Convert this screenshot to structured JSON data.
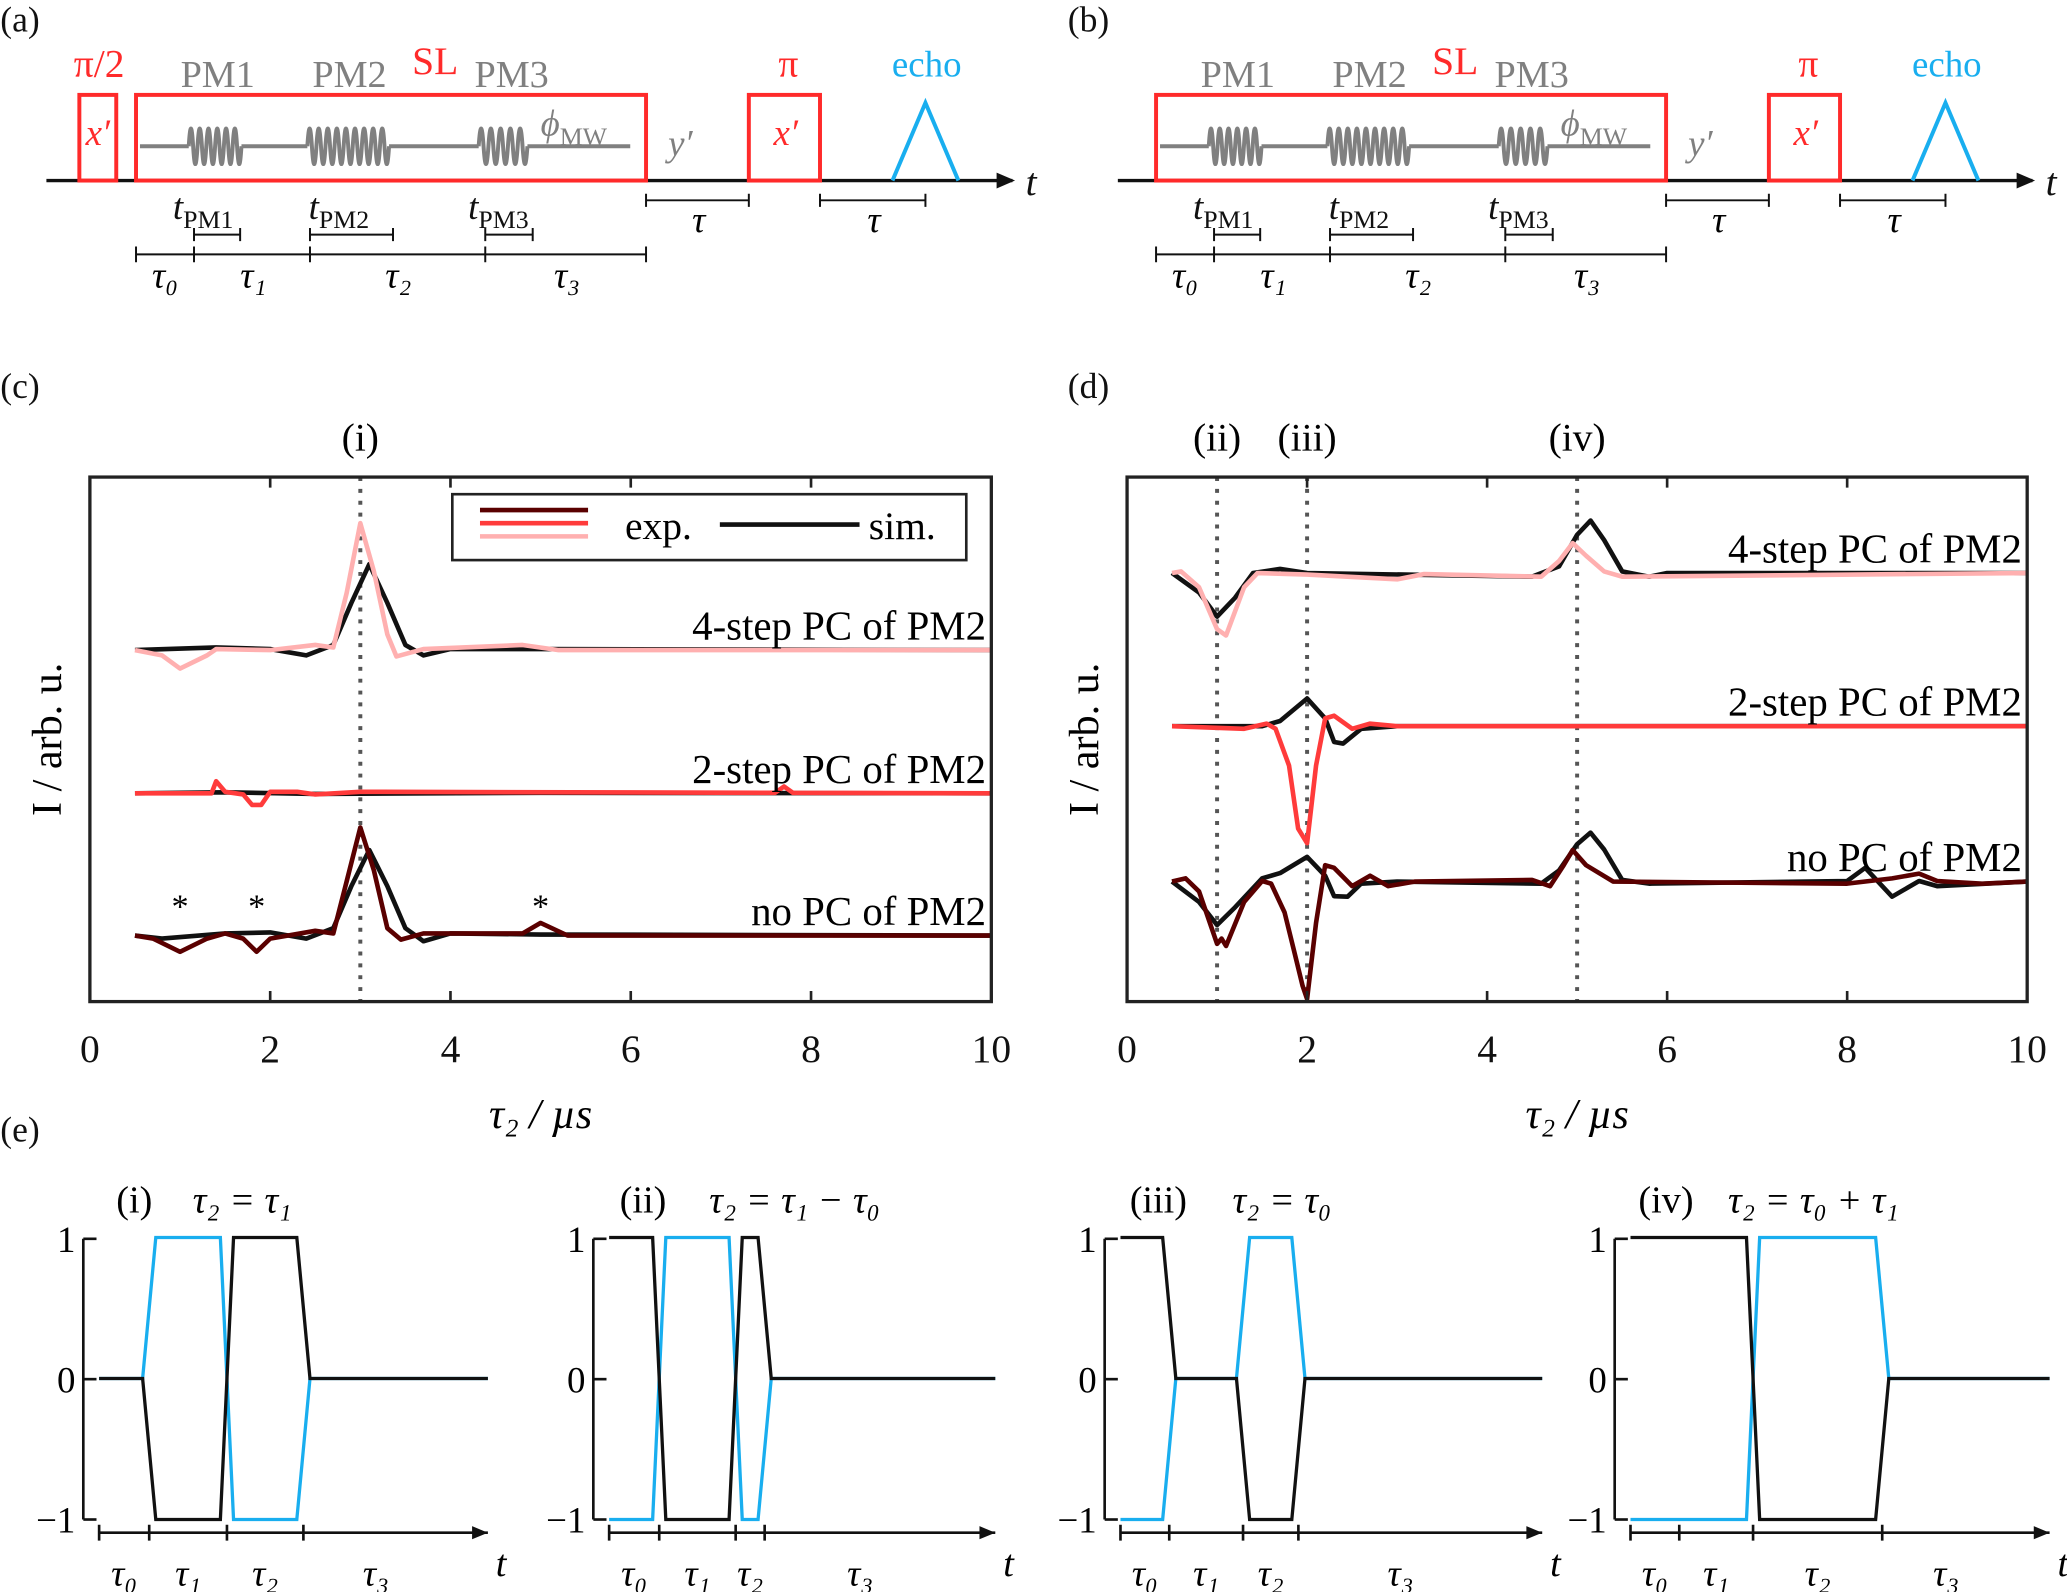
{
  "panel_labels": {
    "a": "(a)",
    "b": "(b)",
    "c": "(c)",
    "d": "(d)",
    "e": "(e)"
  },
  "sequence": {
    "pi_half": "π/2",
    "pi": "π",
    "x_prime": "x′",
    "y_prime": "y′",
    "sl": "SL",
    "echo": "echo",
    "pm1": "PM1",
    "pm2": "PM2",
    "pm3": "PM3",
    "phi": "ϕ",
    "phi_sub": "MW",
    "t_axis": "t",
    "t_sym": "t",
    "tpm1_sub": "PM1",
    "tpm2_sub": "PM2",
    "tpm3_sub": "PM3",
    "tau": "τ",
    "tau0": "τ₀",
    "tau1": "τ₁",
    "tau2": "τ₂",
    "tau3": "τ₃",
    "colors": {
      "pulse": "#ff2a2a",
      "pm": "#808080",
      "echo": "#19aeef",
      "axis": "#111111"
    }
  },
  "chart_data": [
    {
      "id": "c",
      "type": "line",
      "xlabel": "τ₂ / µs",
      "ylabel": "I / arb. u.",
      "xlim": [
        0,
        10
      ],
      "ylim": [
        0,
        10
      ],
      "xticks": [
        0,
        2,
        4,
        6,
        8,
        10
      ],
      "legend": {
        "placement": "top-right",
        "exp": "exp.",
        "sim": "sim.",
        "exp_colors": [
          "#5a0000",
          "#ff3b3b",
          "#ffb0b0"
        ]
      },
      "markers": [
        {
          "x": 3,
          "label": "(i)"
        }
      ],
      "asterisks": {
        "symbol": "*",
        "x": [
          1.0,
          1.85,
          5.0
        ],
        "y": 1.8
      },
      "groups": [
        {
          "label": "4-step PC of PM2",
          "color": "#ffb0b0",
          "sim": [
            [
              0.5,
              6.7
            ],
            [
              1.4,
              6.75
            ],
            [
              2.0,
              6.72
            ],
            [
              2.4,
              6.6
            ],
            [
              2.7,
              6.8
            ],
            [
              2.9,
              7.6
            ],
            [
              3.1,
              8.34
            ],
            [
              3.3,
              7.6
            ],
            [
              3.5,
              6.8
            ],
            [
              3.7,
              6.6
            ],
            [
              4.0,
              6.72
            ],
            [
              5.0,
              6.72
            ],
            [
              10,
              6.7
            ]
          ],
          "exp": [
            [
              0.5,
              6.7
            ],
            [
              0.8,
              6.6
            ],
            [
              1.0,
              6.35
            ],
            [
              1.3,
              6.6
            ],
            [
              1.4,
              6.72
            ],
            [
              2.0,
              6.7
            ],
            [
              2.5,
              6.8
            ],
            [
              2.7,
              6.75
            ],
            [
              2.85,
              7.8
            ],
            [
              3.0,
              9.12
            ],
            [
              3.15,
              8.2
            ],
            [
              3.3,
              7.0
            ],
            [
              3.4,
              6.58
            ],
            [
              3.7,
              6.72
            ],
            [
              4.8,
              6.8
            ],
            [
              5.2,
              6.7
            ],
            [
              10,
              6.7
            ]
          ]
        },
        {
          "label": "2-step PC of PM2",
          "color": "#ff3b3b",
          "sim": [
            [
              0.5,
              3.97
            ],
            [
              1.5,
              3.99
            ],
            [
              2.5,
              3.96
            ],
            [
              5,
              3.98
            ],
            [
              10,
              3.97
            ]
          ],
          "exp": [
            [
              0.5,
              3.97
            ],
            [
              1.35,
              3.97
            ],
            [
              1.4,
              4.2
            ],
            [
              1.5,
              4.0
            ],
            [
              1.7,
              3.95
            ],
            [
              1.8,
              3.75
            ],
            [
              1.9,
              3.75
            ],
            [
              2.0,
              4.0
            ],
            [
              2.3,
              4.0
            ],
            [
              2.5,
              3.95
            ],
            [
              3.0,
              4.0
            ],
            [
              7.6,
              3.98
            ],
            [
              7.7,
              4.1
            ],
            [
              7.8,
              3.98
            ],
            [
              10,
              3.97
            ]
          ]
        },
        {
          "label": "no PC of PM2",
          "color": "#5a0000",
          "sim": [
            [
              0.5,
              1.26
            ],
            [
              0.8,
              1.2
            ],
            [
              1.5,
              1.3
            ],
            [
              2.0,
              1.32
            ],
            [
              2.4,
              1.2
            ],
            [
              2.7,
              1.4
            ],
            [
              2.9,
              2.2
            ],
            [
              3.1,
              2.89
            ],
            [
              3.3,
              2.2
            ],
            [
              3.5,
              1.4
            ],
            [
              3.7,
              1.15
            ],
            [
              4.0,
              1.3
            ],
            [
              5,
              1.28
            ],
            [
              10,
              1.26
            ]
          ],
          "exp": [
            [
              0.5,
              1.26
            ],
            [
              0.7,
              1.2
            ],
            [
              1.0,
              0.95
            ],
            [
              1.3,
              1.2
            ],
            [
              1.5,
              1.3
            ],
            [
              1.7,
              1.2
            ],
            [
              1.85,
              0.95
            ],
            [
              2.0,
              1.2
            ],
            [
              2.5,
              1.35
            ],
            [
              2.7,
              1.3
            ],
            [
              2.85,
              2.3
            ],
            [
              3.0,
              3.32
            ],
            [
              3.15,
              2.5
            ],
            [
              3.3,
              1.4
            ],
            [
              3.45,
              1.18
            ],
            [
              3.7,
              1.3
            ],
            [
              4.8,
              1.3
            ],
            [
              5.0,
              1.5
            ],
            [
              5.3,
              1.26
            ],
            [
              10,
              1.26
            ]
          ]
        }
      ]
    },
    {
      "id": "d",
      "type": "line",
      "xlabel": "τ₂ / µs",
      "ylabel": "I / arb. u.",
      "xlim": [
        0,
        10
      ],
      "ylim": [
        0,
        10
      ],
      "xticks": [
        0,
        2,
        4,
        6,
        8,
        10
      ],
      "markers": [
        {
          "x": 1,
          "label": "(ii)"
        },
        {
          "x": 2,
          "label": "(iii)"
        },
        {
          "x": 5,
          "label": "(iv)"
        }
      ],
      "groups": [
        {
          "label": "4-step PC of PM2",
          "color": "#ffb0b0",
          "sim": [
            [
              0.5,
              8.17
            ],
            [
              0.8,
              7.8
            ],
            [
              1.0,
              7.34
            ],
            [
              1.2,
              7.7
            ],
            [
              1.4,
              8.17
            ],
            [
              1.7,
              8.25
            ],
            [
              2.0,
              8.17
            ],
            [
              4.5,
              8.1
            ],
            [
              4.8,
              8.3
            ],
            [
              5.0,
              8.9
            ],
            [
              5.15,
              9.17
            ],
            [
              5.3,
              8.8
            ],
            [
              5.5,
              8.2
            ],
            [
              5.8,
              8.1
            ],
            [
              6.0,
              8.17
            ],
            [
              10,
              8.17
            ]
          ],
          "exp": [
            [
              0.5,
              8.17
            ],
            [
              0.6,
              8.2
            ],
            [
              0.8,
              7.9
            ],
            [
              1.0,
              7.1
            ],
            [
              1.1,
              6.98
            ],
            [
              1.3,
              7.9
            ],
            [
              1.45,
              8.17
            ],
            [
              2.0,
              8.14
            ],
            [
              3.0,
              8.05
            ],
            [
              3.3,
              8.15
            ],
            [
              4.6,
              8.1
            ],
            [
              4.8,
              8.4
            ],
            [
              4.95,
              8.74
            ],
            [
              5.1,
              8.5
            ],
            [
              5.3,
              8.2
            ],
            [
              5.5,
              8.1
            ],
            [
              10,
              8.17
            ]
          ]
        },
        {
          "label": "2-step PC of PM2",
          "color": "#ff3b3b",
          "sim": [
            [
              0.5,
              5.25
            ],
            [
              1.5,
              5.25
            ],
            [
              1.7,
              5.35
            ],
            [
              2.0,
              5.78
            ],
            [
              2.2,
              5.4
            ],
            [
              2.3,
              4.95
            ],
            [
              2.4,
              4.92
            ],
            [
              2.6,
              5.2
            ],
            [
              3,
              5.25
            ],
            [
              10,
              5.25
            ]
          ],
          "exp": [
            [
              0.5,
              5.25
            ],
            [
              1.3,
              5.2
            ],
            [
              1.55,
              5.3
            ],
            [
              1.65,
              5.2
            ],
            [
              1.8,
              4.5
            ],
            [
              1.9,
              3.3
            ],
            [
              2.0,
              3.02
            ],
            [
              2.1,
              4.5
            ],
            [
              2.2,
              5.4
            ],
            [
              2.3,
              5.45
            ],
            [
              2.5,
              5.2
            ],
            [
              2.7,
              5.3
            ],
            [
              3,
              5.25
            ],
            [
              10,
              5.25
            ]
          ]
        },
        {
          "label": "no PC of PM2",
          "color": "#5a0000",
          "sim": [
            [
              0.5,
              2.29
            ],
            [
              0.8,
              1.9
            ],
            [
              1.0,
              1.46
            ],
            [
              1.2,
              1.8
            ],
            [
              1.5,
              2.35
            ],
            [
              1.7,
              2.45
            ],
            [
              2.0,
              2.76
            ],
            [
              2.2,
              2.4
            ],
            [
              2.3,
              2.01
            ],
            [
              2.45,
              2.0
            ],
            [
              2.6,
              2.25
            ],
            [
              3,
              2.29
            ],
            [
              4.6,
              2.25
            ],
            [
              4.8,
              2.5
            ],
            [
              5.0,
              3.0
            ],
            [
              5.15,
              3.22
            ],
            [
              5.3,
              2.9
            ],
            [
              5.5,
              2.32
            ],
            [
              5.8,
              2.25
            ],
            [
              8.0,
              2.3
            ],
            [
              8.2,
              2.55
            ],
            [
              8.5,
              2.0
            ],
            [
              8.8,
              2.3
            ],
            [
              9.0,
              2.2
            ],
            [
              10,
              2.29
            ]
          ],
          "exp": [
            [
              0.5,
              2.29
            ],
            [
              0.65,
              2.35
            ],
            [
              0.8,
              2.1
            ],
            [
              1.0,
              1.1
            ],
            [
              1.05,
              1.2
            ],
            [
              1.1,
              1.06
            ],
            [
              1.3,
              1.9
            ],
            [
              1.5,
              2.3
            ],
            [
              1.6,
              2.25
            ],
            [
              1.75,
              1.7
            ],
            [
              1.85,
              1.0
            ],
            [
              1.95,
              0.3
            ],
            [
              2.0,
              0.05
            ],
            [
              2.1,
              1.5
            ],
            [
              2.2,
              2.6
            ],
            [
              2.3,
              2.55
            ],
            [
              2.5,
              2.2
            ],
            [
              2.7,
              2.4
            ],
            [
              2.9,
              2.2
            ],
            [
              3.2,
              2.29
            ],
            [
              4.5,
              2.32
            ],
            [
              4.7,
              2.2
            ],
            [
              4.85,
              2.6
            ],
            [
              4.95,
              2.89
            ],
            [
              5.1,
              2.6
            ],
            [
              5.4,
              2.29
            ],
            [
              8.0,
              2.25
            ],
            [
              8.5,
              2.35
            ],
            [
              8.8,
              2.44
            ],
            [
              9.0,
              2.3
            ],
            [
              9.5,
              2.25
            ],
            [
              10,
              2.29
            ]
          ]
        }
      ]
    }
  ],
  "phase_panels": {
    "yticks": [
      "1",
      "0",
      "−1"
    ],
    "t_axis": "t",
    "intervals": [
      "τ₀",
      "τ₁",
      "τ₂",
      "τ₃"
    ],
    "colors": {
      "black": "#111111",
      "blue": "#19aeef"
    },
    "panels": [
      {
        "tag": "(i)",
        "condition": "τ₂ = τ₁",
        "black": [
          0,
          -1,
          1,
          0
        ],
        "blue": [
          0,
          1,
          -1,
          0
        ]
      },
      {
        "tag": "(ii)",
        "condition": "τ₂ = τ₁ − τ₀",
        "black": [
          1,
          -1,
          1,
          0
        ],
        "blue": [
          -1,
          1,
          -1,
          0
        ]
      },
      {
        "tag": "(iii)",
        "condition": "τ₂ = τ₀",
        "black": [
          1,
          0,
          -1,
          0
        ],
        "blue": [
          -1,
          0,
          1,
          0
        ]
      },
      {
        "tag": "(iv)",
        "condition": "τ₂ = τ₀ + τ₁",
        "black": [
          1,
          1,
          -1,
          0
        ],
        "blue": [
          -1,
          -1,
          1,
          0
        ]
      }
    ]
  }
}
